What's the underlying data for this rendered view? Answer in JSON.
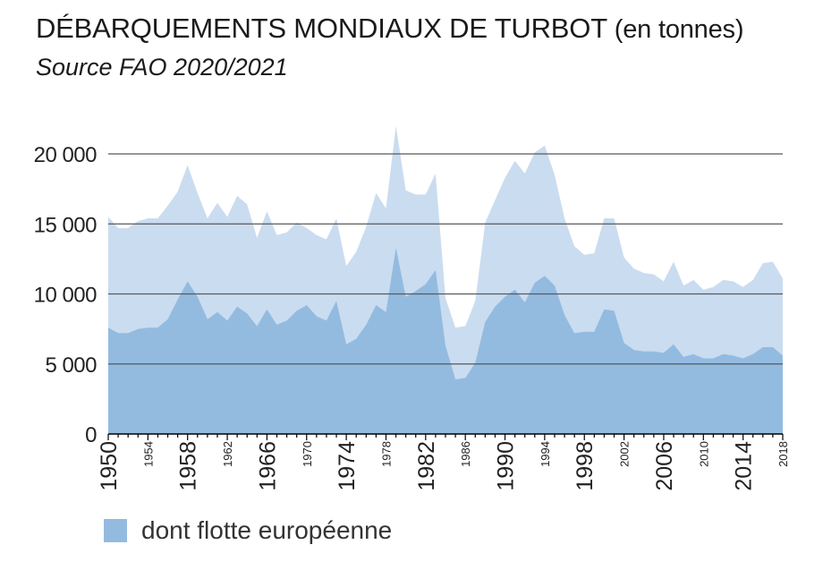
{
  "chart_data": {
    "type": "area",
    "title": "DÉBARQUEMENTS MONDIAUX DE TURBOT",
    "title_unit": "(en tonnes)",
    "subtitle": "Source FAO 2020/2021",
    "ylim": [
      0,
      20000
    ],
    "xlim": [
      1950,
      2018
    ],
    "y_ticks": [
      {
        "value": 0,
        "label": "0"
      },
      {
        "value": 5000,
        "label": "5 000"
      },
      {
        "value": 10000,
        "label": "10 000"
      },
      {
        "value": 15000,
        "label": "15 000"
      },
      {
        "value": 20000,
        "label": "20 000"
      }
    ],
    "x_ticks_major": [
      "1950",
      "1958",
      "1966",
      "1974",
      "1982",
      "1990",
      "1998",
      "2006",
      "2014"
    ],
    "x_ticks_minor": [
      "1954",
      "1962",
      "1970",
      "1978",
      "1986",
      "1994",
      "2002",
      "2010",
      "2018"
    ],
    "grid": "horizontal",
    "legend_position": "bottom-left",
    "x": [
      1950,
      1951,
      1952,
      1953,
      1954,
      1955,
      1956,
      1957,
      1958,
      1959,
      1960,
      1961,
      1962,
      1963,
      1964,
      1965,
      1966,
      1967,
      1968,
      1969,
      1970,
      1971,
      1972,
      1973,
      1974,
      1975,
      1976,
      1977,
      1978,
      1979,
      1980,
      1981,
      1982,
      1983,
      1984,
      1985,
      1986,
      1987,
      1988,
      1989,
      1990,
      1991,
      1992,
      1993,
      1994,
      1995,
      1996,
      1997,
      1998,
      1999,
      2000,
      2001,
      2002,
      2003,
      2004,
      2005,
      2006,
      2007,
      2008,
      2009,
      2010,
      2011,
      2012,
      2013,
      2014,
      2015,
      2016,
      2017,
      2018
    ],
    "series": [
      {
        "values": [
          15500,
          14700,
          14700,
          15200,
          15400,
          15400,
          16300,
          17300,
          19200,
          17200,
          15400,
          16500,
          15500,
          17000,
          16400,
          14000,
          15900,
          14200,
          14400,
          15100,
          14700,
          14200,
          13900,
          15400,
          12000,
          13000,
          14800,
          17200,
          16100,
          22000,
          17400,
          17100,
          17100,
          18600,
          9700,
          7600,
          7700,
          9500,
          15100,
          16700,
          18300,
          19500,
          18600,
          20100,
          20600,
          18500,
          15400,
          13400,
          12800,
          12900,
          15400,
          15400,
          12600,
          11800,
          11500,
          11400,
          10900,
          12300,
          10600,
          11000,
          10300,
          10500,
          11000,
          10900,
          10500,
          11000,
          12200,
          12300,
          11100
        ]
      },
      {
        "name": "dont flotte européenne",
        "values": [
          7600,
          7200,
          7200,
          7500,
          7600,
          7600,
          8200,
          9600,
          10900,
          9800,
          8200,
          8700,
          8100,
          9100,
          8600,
          7700,
          8900,
          7800,
          8100,
          8800,
          9200,
          8400,
          8100,
          9500,
          6400,
          6800,
          7800,
          9200,
          8700,
          13300,
          9800,
          10200,
          10700,
          11700,
          6300,
          3900,
          4000,
          5100,
          8000,
          9100,
          9800,
          10300,
          9400,
          10800,
          11300,
          10600,
          8500,
          7200,
          7300,
          7300,
          8900,
          8800,
          6500,
          6000,
          5900,
          5900,
          5800,
          6400,
          5500,
          5700,
          5400,
          5400,
          5700,
          5600,
          5400,
          5700,
          6200,
          6200,
          5600
        ]
      }
    ],
    "colors": {
      "total": "#cadcf0",
      "european": "#93bbe0",
      "gridline": "#595959",
      "axis": "#000000"
    }
  }
}
